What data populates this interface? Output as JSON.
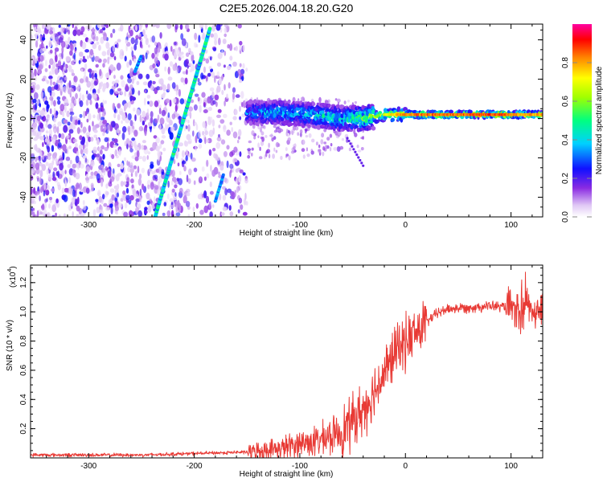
{
  "title": "C2E5.2026.004.18.20.G20",
  "colors": {
    "snr_line": "#e83a35",
    "axes": "#000000",
    "background": "#ffffff"
  },
  "chart_data": [
    {
      "type": "heatmap",
      "xlabel": "Height of straight line (km)",
      "ylabel": "Frequency (Hz)",
      "xlim": [
        -355,
        130
      ],
      "ylim": [
        -50,
        48
      ],
      "xticks": [
        -300,
        -200,
        -100,
        0,
        100
      ],
      "xtick_labels": [
        "-300",
        "-200",
        "-100",
        "0",
        "100"
      ],
      "yticks": [
        -40,
        -20,
        0,
        20,
        40
      ],
      "ytick_labels": [
        "-40",
        "-20",
        "0",
        "20",
        "40"
      ],
      "colorbar": {
        "label": "Normalized spectral amplitude",
        "range": [
          0,
          1
        ],
        "ticks": [
          0.0,
          0.2,
          0.4,
          0.6,
          0.8
        ],
        "tick_labels": [
          "0.0",
          "0.2",
          "0.4",
          "0.6",
          "0.8"
        ],
        "colormap": "rainbow (white-violet-blue-cyan-green-yellow-red-magenta)"
      },
      "features": {
        "main_tone": {
          "description": "strong carrier tone near 2 Hz from about -150 km to 130 km",
          "x": [
            -150,
            -120,
            -90,
            -60,
            -40,
            -20,
            0,
            40,
            80,
            100,
            130
          ],
          "y": [
            3,
            3,
            2,
            0,
            0,
            2,
            2,
            2,
            2,
            2,
            2
          ],
          "amplitude": [
            0.35,
            0.45,
            0.45,
            0.5,
            0.6,
            0.7,
            0.85,
            0.85,
            0.9,
            0.85,
            0.8
          ]
        },
        "diagonal_line": {
          "description": "sloped line from about (-237 km, -50 Hz) to (-185 km, 46 Hz)",
          "x": [
            -237,
            -185
          ],
          "y": [
            -50,
            46
          ]
        },
        "short_line_left": {
          "x": [
            -256,
            -250
          ],
          "y": [
            24,
            32
          ]
        },
        "short_line_right": {
          "x": [
            -180,
            -172
          ],
          "y": [
            -42,
            -28
          ]
        },
        "noise_region": {
          "x": [
            -355,
            -150
          ],
          "y": [
            -50,
            48
          ]
        }
      }
    },
    {
      "type": "line",
      "xlabel": "Height of straight line (km)",
      "ylabel": "SNR (10 * v/v)",
      "y_multiplier": "(x10",
      "y_multiplier_exp": "4",
      "y_multiplier_close": ")",
      "xlim": [
        -355,
        130
      ],
      "ylim": [
        0,
        1.32
      ],
      "xticks": [
        -300,
        -200,
        -100,
        0,
        100
      ],
      "xtick_labels": [
        "-300",
        "-200",
        "-100",
        "0",
        "100"
      ],
      "yticks": [
        0.2,
        0.4,
        0.6,
        0.8,
        1.0,
        1.2
      ],
      "ytick_labels": [
        "0.2",
        "0.4",
        "0.6",
        "0.8",
        "1.0",
        "1.2"
      ],
      "series": [
        {
          "x": [
            -355,
            -300,
            -250,
            -200,
            -150,
            -120,
            -100,
            -80,
            -60,
            -40,
            -30,
            -20,
            -10,
            0,
            10,
            20,
            30,
            40,
            60,
            80,
            100,
            105,
            110,
            115,
            120,
            130
          ],
          "y": [
            0.02,
            0.02,
            0.02,
            0.03,
            0.04,
            0.06,
            0.1,
            0.12,
            0.18,
            0.33,
            0.45,
            0.58,
            0.72,
            0.8,
            0.85,
            0.93,
            0.99,
            1.02,
            1.03,
            1.04,
            1.03,
            1.0,
            0.95,
            1.05,
            1.02,
            1.01
          ]
        }
      ]
    }
  ]
}
